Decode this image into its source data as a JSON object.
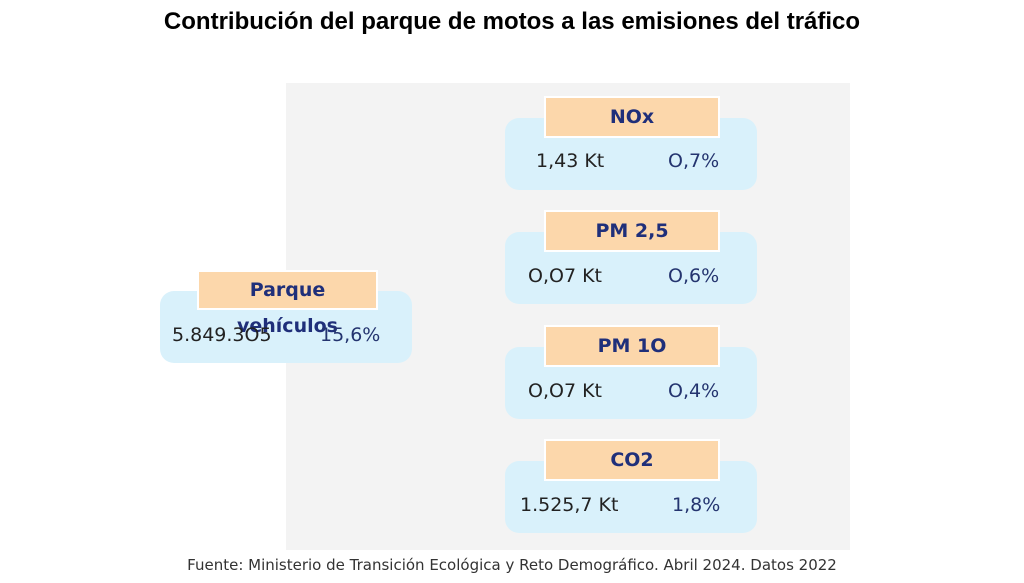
{
  "title": "Contribución del parque de motos a las emisiones del tráfico",
  "fleet": {
    "label": "Parque vehículos",
    "value": "5.849.3O5",
    "percent": "15,6%"
  },
  "emissions": [
    {
      "label": "NOx",
      "value": "1,43 Kt",
      "percent": "O,7%"
    },
    {
      "label": "PM 2,5",
      "value": "O,O7 Kt",
      "percent": "O,6%"
    },
    {
      "label": "PM 1O",
      "value": "O,O7 Kt",
      "percent": "O,4%"
    },
    {
      "label": "CO2",
      "value": "1.525,7 Kt",
      "percent": "1,8%"
    }
  ],
  "source": "Fuente: Ministerio de Transición Ecológica y Reto Demográfico. Abril 2024. Datos 2022",
  "colors": {
    "card_background": "#d9f1fb",
    "label_background": "#fcd7ab",
    "label_text": "#1f2f7a",
    "panel_background": "#f3f3f3"
  }
}
